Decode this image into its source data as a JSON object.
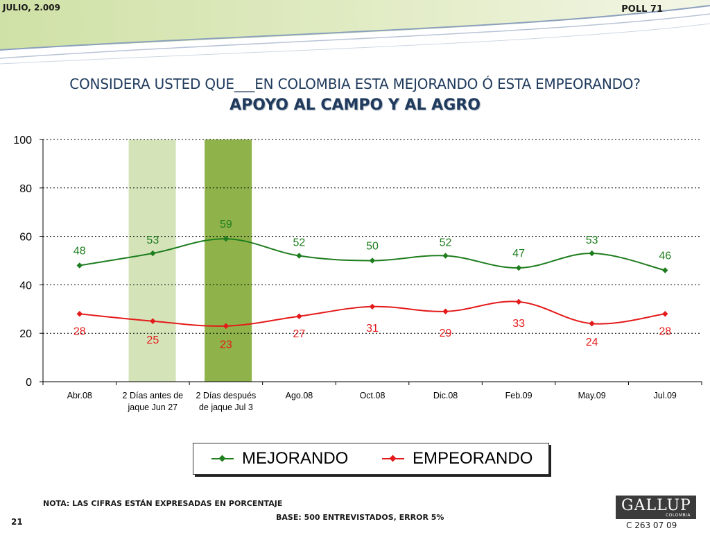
{
  "header": {
    "date": "JULIO, 2.009",
    "poll": "POLL 71"
  },
  "question": {
    "title": "CONSIDERA USTED QUE___EN COLOMBIA ESTA MEJORANDO Ó ESTA EMPEORANDO?",
    "subtitle": "APOYO AL CAMPO Y AL AGRO"
  },
  "chart_data": {
    "type": "line",
    "categories": [
      [
        "Abr.08"
      ],
      [
        "2 Días antes de",
        "jaque Jun 27"
      ],
      [
        "2 Días después",
        "de jaque Jul 3"
      ],
      [
        "Ago.08"
      ],
      [
        "Oct.08"
      ],
      [
        "Dic.08"
      ],
      [
        "Feb.09"
      ],
      [
        "May.09"
      ],
      [
        "Jul.09"
      ]
    ],
    "series": [
      {
        "name": "MEJORANDO",
        "color": "#1e7d1e",
        "values": [
          48,
          53,
          59,
          52,
          50,
          52,
          47,
          53,
          46
        ]
      },
      {
        "name": "EMPEORANDO",
        "color": "#e41a1a",
        "values": [
          28,
          25,
          23,
          27,
          31,
          29,
          33,
          24,
          28
        ]
      }
    ],
    "ylim": [
      0,
      100
    ],
    "yticks": [
      0,
      20,
      40,
      60,
      80,
      100
    ],
    "grid": "dotted horizontal",
    "highlight_bands": [
      {
        "category_index": 1,
        "color": "#d5e3b9"
      },
      {
        "category_index": 2,
        "color": "#8fb34a"
      }
    ],
    "legend": "bottom"
  },
  "notes": {
    "nota": "NOTA: LAS CIFRAS ESTÁN EXPRESADAS EN PORCENTAJE",
    "base": "BASE: 500 ENTREVISTADOS, ERROR 5%"
  },
  "footer": {
    "page": "21",
    "logo_main": "GALLUP",
    "logo_sub": "COLOMBIA",
    "code": "C 263 07 09"
  }
}
